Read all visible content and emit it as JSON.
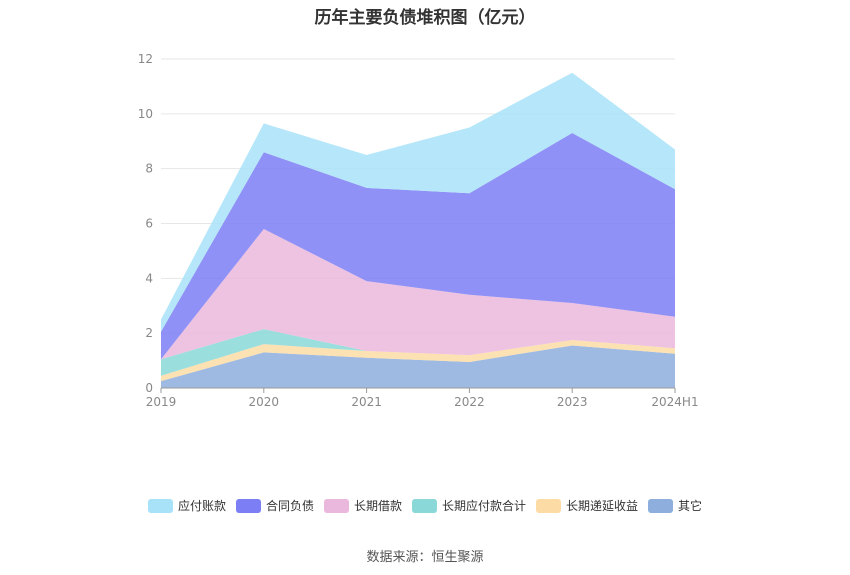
{
  "chart_data": {
    "type": "area",
    "stacked": true,
    "title": "历年主要负债堆积图（亿元）",
    "categories": [
      "2019",
      "2020",
      "2021",
      "2022",
      "2023",
      "2024H1"
    ],
    "ylim": [
      0,
      12
    ],
    "yticks": [
      "0",
      "2",
      "4",
      "6",
      "8",
      "10",
      "12"
    ],
    "grid": true,
    "legend_position": "bottom",
    "series": [
      {
        "name": "其它",
        "color": "#8eaedd",
        "values": [
          0.25,
          1.3,
          1.1,
          0.95,
          1.55,
          1.25
        ]
      },
      {
        "name": "长期递延收益",
        "color": "#fcdca4",
        "values": [
          0.2,
          0.3,
          0.25,
          0.25,
          0.2,
          0.2
        ]
      },
      {
        "name": "长期应付款合计",
        "color": "#8ad8d8",
        "values": [
          0.6,
          0.55,
          0.0,
          0.0,
          0.0,
          0.0
        ]
      },
      {
        "name": "长期借款",
        "color": "#eab8dc",
        "values": [
          0.0,
          3.65,
          2.55,
          2.2,
          1.35,
          1.15
        ]
      },
      {
        "name": "合同负债",
        "color": "#7b7ef5",
        "values": [
          1.0,
          2.8,
          3.4,
          3.7,
          6.2,
          4.65
        ]
      },
      {
        "name": "应付账款",
        "color": "#a8e2f8",
        "values": [
          0.45,
          1.05,
          1.2,
          2.4,
          2.2,
          1.45
        ]
      }
    ],
    "legend_order": [
      "应付账款",
      "合同负债",
      "长期借款",
      "长期应付款合计",
      "长期递延收益",
      "其它"
    ]
  },
  "source": "数据来源：恒生聚源"
}
